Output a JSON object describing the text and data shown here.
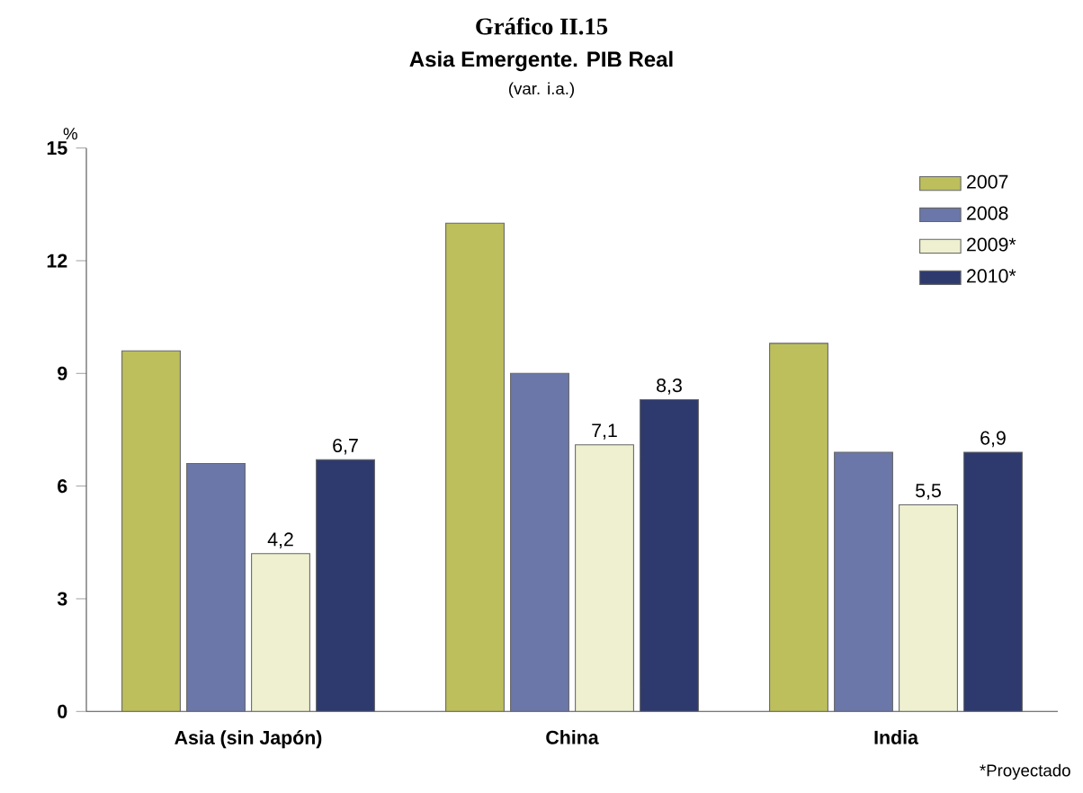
{
  "chart_data": {
    "type": "bar",
    "title": "Gráfico II.15",
    "subtitle": "Asia Emergente. PIB Real",
    "ylabel": "%",
    "annotations": [
      "(var. i.a.)",
      "*Proyectado"
    ],
    "categories": [
      "Asia (sin Japón)",
      "China",
      "India"
    ],
    "series": [
      {
        "name": "2007",
        "color": "#bcbf5c",
        "values": [
          9.6,
          13.0,
          9.8
        ]
      },
      {
        "name": "2008",
        "color": "#6b77a8",
        "values": [
          6.6,
          9.0,
          6.9
        ]
      },
      {
        "name": "2009*",
        "color": "#eef0d0",
        "values": [
          4.2,
          7.1,
          5.5
        ],
        "value_labels": [
          "4,2",
          "7,1",
          "5,5"
        ]
      },
      {
        "name": "2010*",
        "color": "#2e3a6e",
        "values": [
          6.7,
          8.3,
          6.9
        ],
        "value_labels": [
          "6,7",
          "8,3",
          "6,9"
        ]
      }
    ],
    "ylim": [
      0,
      15
    ],
    "yticks": [
      0,
      3,
      6,
      9,
      12,
      15
    ],
    "legend": "top right",
    "grid": false
  }
}
